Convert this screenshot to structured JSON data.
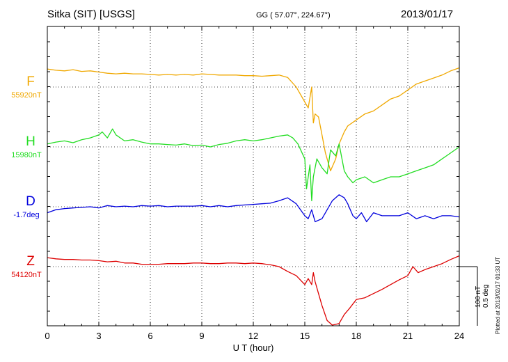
{
  "header": {
    "station": "Sitka (SIT)  [USGS]",
    "coords": "GG ( 57.07°, 224.67°)",
    "date": "2013/01/17"
  },
  "footer": {
    "plotted": "Plotted at 2013/02/17 01:33 UT"
  },
  "scale": {
    "line1": "100 nT",
    "line2": "0.5 deg"
  },
  "chart_data": {
    "type": "line",
    "xlabel": "U T (hour)",
    "xlim": [
      0,
      24
    ],
    "xticks": [
      "0",
      "3",
      "6",
      "9",
      "12",
      "15",
      "18",
      "21",
      "24"
    ],
    "grid": true,
    "series": [
      {
        "name": "F",
        "baseline_label": "55920nT",
        "color": "#f0a800",
        "x": [
          0,
          0.5,
          1,
          1.5,
          2,
          2.5,
          3,
          3.5,
          4,
          4.5,
          5,
          5.5,
          6,
          6.5,
          7,
          7.5,
          8,
          8.5,
          9,
          9.5,
          10,
          10.5,
          11,
          11.5,
          12,
          12.5,
          13,
          13.5,
          14,
          14.5,
          15,
          15.2,
          15.4,
          15.5,
          15.6,
          15.8,
          16,
          16.2,
          16.5,
          16.8,
          17,
          17.3,
          17.5,
          18,
          18.5,
          19,
          19.5,
          20,
          20.5,
          21,
          21.5,
          22,
          22.5,
          23,
          23.5,
          24
        ],
        "y": [
          30,
          28,
          27,
          29,
          26,
          27,
          25,
          23,
          22,
          23,
          22,
          22,
          21,
          20,
          21,
          20,
          21,
          20,
          22,
          21,
          20,
          20,
          20,
          19,
          19,
          18,
          19,
          20,
          16,
          0,
          -25,
          -35,
          0,
          -60,
          -45,
          -50,
          -80,
          -110,
          -140,
          -120,
          -95,
          -75,
          -65,
          -55,
          -45,
          -40,
          -30,
          -20,
          -15,
          -5,
          5,
          10,
          15,
          20,
          27,
          32
        ]
      },
      {
        "name": "H",
        "baseline_label": "15980nT",
        "color": "#22dd22",
        "x": [
          0,
          0.5,
          1,
          1.5,
          2,
          2.5,
          3,
          3.2,
          3.5,
          3.8,
          4,
          4.5,
          5,
          5.5,
          6,
          6.5,
          7,
          7.5,
          8,
          8.5,
          9,
          9.5,
          10,
          10.5,
          11,
          11.5,
          12,
          12.5,
          13,
          13.5,
          14,
          14.3,
          14.6,
          15,
          15.1,
          15.3,
          15.4,
          15.5,
          15.7,
          16,
          16.3,
          16.5,
          16.8,
          17,
          17.3,
          17.5,
          17.8,
          18,
          18.5,
          19,
          19.5,
          20,
          20.5,
          21,
          21.5,
          22,
          22.5,
          23,
          23.5,
          24
        ],
        "y": [
          5,
          8,
          10,
          7,
          12,
          15,
          20,
          25,
          15,
          30,
          20,
          10,
          12,
          8,
          5,
          5,
          4,
          3,
          5,
          2,
          3,
          0,
          4,
          6,
          10,
          12,
          10,
          12,
          15,
          18,
          20,
          15,
          5,
          -20,
          -70,
          -30,
          -90,
          -50,
          -20,
          -35,
          -45,
          -5,
          -15,
          5,
          -40,
          -50,
          -60,
          -55,
          -50,
          -60,
          -55,
          -50,
          -50,
          -45,
          -40,
          -35,
          -30,
          -20,
          -10,
          0
        ]
      },
      {
        "name": "D",
        "baseline_label": "-1.7deg",
        "color": "#0000dd",
        "x": [
          0,
          0.5,
          1,
          1.5,
          2,
          2.5,
          3,
          3.5,
          4,
          4.5,
          5,
          5.5,
          6,
          6.5,
          7,
          7.5,
          8,
          8.5,
          9,
          9.5,
          10,
          10.5,
          11,
          11.5,
          12,
          12.5,
          13,
          13.5,
          14,
          14.5,
          15,
          15.2,
          15.4,
          15.6,
          16,
          16.3,
          16.6,
          17,
          17.3,
          17.5,
          17.8,
          18,
          18.3,
          18.6,
          19,
          19.5,
          20,
          20.5,
          21,
          21.5,
          22,
          22.5,
          23,
          23.5,
          24
        ],
        "y": [
          -10,
          -5,
          -3,
          -2,
          -1,
          0,
          -2,
          2,
          0,
          1,
          0,
          2,
          1,
          2,
          0,
          1,
          1,
          1,
          2,
          0,
          2,
          0,
          2,
          3,
          4,
          5,
          6,
          10,
          15,
          5,
          -15,
          -20,
          -5,
          -25,
          -20,
          -5,
          10,
          20,
          15,
          5,
          -15,
          -20,
          -10,
          -25,
          -10,
          -15,
          -15,
          -15,
          -10,
          -20,
          -15,
          -20,
          -15,
          -15,
          -17
        ]
      },
      {
        "name": "Z",
        "baseline_label": "54120nT",
        "color": "#dd0000",
        "x": [
          0,
          0.5,
          1,
          1.5,
          2,
          2.5,
          3,
          3.5,
          4,
          4.5,
          5,
          5.5,
          6,
          6.5,
          7,
          7.5,
          8,
          8.5,
          9,
          9.5,
          10,
          10.5,
          11,
          11.5,
          12,
          12.5,
          13,
          13.5,
          14,
          14.5,
          15,
          15.2,
          15.4,
          15.5,
          15.6,
          15.8,
          16,
          16.3,
          16.6,
          17,
          17.3,
          17.6,
          18,
          18.5,
          19,
          19.5,
          20,
          20.5,
          21,
          21.3,
          21.6,
          22,
          22.5,
          23,
          23.5,
          24
        ],
        "y": [
          15,
          13,
          12,
          12,
          11,
          11,
          10,
          8,
          9,
          6,
          6,
          4,
          4,
          4,
          5,
          5,
          5,
          6,
          6,
          5,
          5,
          6,
          6,
          5,
          6,
          5,
          3,
          0,
          -8,
          -15,
          -30,
          -20,
          -30,
          -10,
          -25,
          -45,
          -65,
          -90,
          -100,
          -95,
          -80,
          -70,
          -55,
          -52,
          -45,
          -38,
          -30,
          -22,
          -15,
          0,
          -10,
          -5,
          0,
          5,
          12,
          18
        ]
      }
    ]
  }
}
